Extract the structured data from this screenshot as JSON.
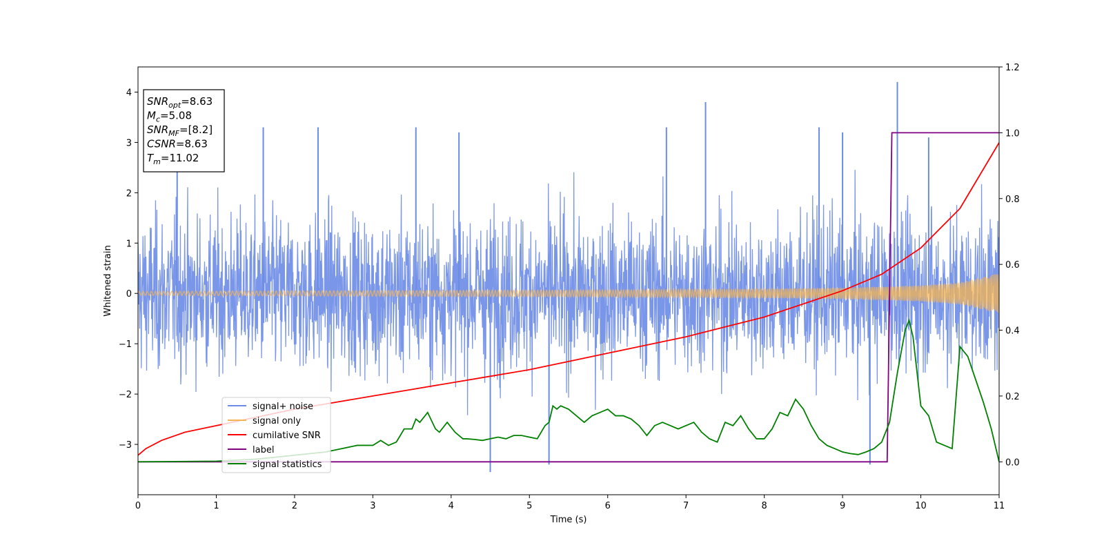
{
  "chart_data": {
    "type": "line",
    "xlabel": "Time (s)",
    "ylabel": "Whitened strain",
    "xlim": [
      0,
      11
    ],
    "ylim": [
      -4,
      4.5
    ],
    "y2lim": [
      -0.1,
      1.2
    ],
    "x_ticks": [
      "0",
      "1",
      "2",
      "3",
      "4",
      "5",
      "6",
      "7",
      "8",
      "9",
      "10",
      "11"
    ],
    "y_ticks": [
      "−3",
      "−2",
      "−1",
      "0",
      "1",
      "2",
      "3",
      "4"
    ],
    "y2_ticks": [
      "0.0",
      "0.2",
      "0.4",
      "0.6",
      "0.8",
      "1.0",
      "1.2"
    ],
    "grid": false,
    "legend_position": "lower-left",
    "info_box": [
      {
        "var": "SNR",
        "sub": "opt",
        "value": "=8.63"
      },
      {
        "var": "M",
        "sub": "c",
        "value": "=5.08"
      },
      {
        "var": "SNR",
        "sub": "MF",
        "value": "=[8.2]"
      },
      {
        "var": "CSNR",
        "sub": "",
        "value": "=8.63"
      },
      {
        "var": "T",
        "sub": "m",
        "value": "=11.02"
      }
    ],
    "series": [
      {
        "name": "signal+ noise",
        "color": "#6b8be6",
        "axis": "left",
        "kind": "noise_band",
        "band_sigma": 0.8,
        "extreme_peaks": [
          [
            0.5,
            3.2
          ],
          [
            1.6,
            3.3
          ],
          [
            2.3,
            3.3
          ],
          [
            3.55,
            3.3
          ],
          [
            4.1,
            3.2
          ],
          [
            4.5,
            -3.55
          ],
          [
            5.25,
            -3.4
          ],
          [
            6.75,
            3.3
          ],
          [
            7.25,
            3.8
          ],
          [
            8.7,
            3.3
          ],
          [
            9.0,
            3.2
          ],
          [
            9.35,
            -3.4
          ],
          [
            9.7,
            4.2
          ],
          [
            10.1,
            3.1
          ]
        ]
      },
      {
        "name": "signal only",
        "color": "#f5b452",
        "axis": "left",
        "kind": "chirp_envelope",
        "amplitude": [
          [
            0,
            0.04
          ],
          [
            2,
            0.05
          ],
          [
            4,
            0.06
          ],
          [
            6,
            0.07
          ],
          [
            8,
            0.09
          ],
          [
            9,
            0.11
          ],
          [
            10,
            0.16
          ],
          [
            10.5,
            0.22
          ],
          [
            11,
            0.4
          ]
        ]
      },
      {
        "name": "cumilative SNR",
        "color": "#ff0000",
        "axis": "right",
        "x": [
          0,
          0.1,
          0.3,
          0.6,
          1,
          1.5,
          2,
          2.5,
          3,
          3.5,
          4,
          4.5,
          5,
          5.5,
          6,
          6.5,
          7,
          7.5,
          8,
          8.5,
          9,
          9.5,
          10,
          10.5,
          11
        ],
        "y": [
          0.02,
          0.04,
          0.065,
          0.09,
          0.11,
          0.135,
          0.16,
          0.18,
          0.2,
          0.22,
          0.24,
          0.26,
          0.28,
          0.305,
          0.33,
          0.355,
          0.38,
          0.41,
          0.44,
          0.48,
          0.52,
          0.57,
          0.65,
          0.77,
          0.97
        ]
      },
      {
        "name": "label",
        "color": "#800080",
        "axis": "right",
        "x": [
          0,
          9.57,
          9.63,
          11
        ],
        "y": [
          0,
          0,
          1,
          1
        ]
      },
      {
        "name": "signal statistics",
        "color": "#008000",
        "axis": "right",
        "x": [
          0,
          1,
          1.5,
          1.8,
          2,
          2.2,
          2.4,
          2.6,
          2.8,
          3.0,
          3.1,
          3.2,
          3.3,
          3.4,
          3.5,
          3.55,
          3.6,
          3.7,
          3.8,
          3.85,
          3.95,
          4.05,
          4.15,
          4.2,
          4.3,
          4.4,
          4.5,
          4.6,
          4.7,
          4.8,
          4.9,
          5.0,
          5.1,
          5.2,
          5.25,
          5.3,
          5.35,
          5.4,
          5.5,
          5.6,
          5.7,
          5.8,
          5.9,
          6.0,
          6.1,
          6.2,
          6.3,
          6.4,
          6.5,
          6.6,
          6.7,
          6.8,
          6.9,
          7.0,
          7.1,
          7.2,
          7.3,
          7.4,
          7.5,
          7.6,
          7.7,
          7.8,
          7.9,
          8.0,
          8.1,
          8.2,
          8.3,
          8.4,
          8.5,
          8.6,
          8.7,
          8.8,
          8.9,
          9.0,
          9.1,
          9.2,
          9.3,
          9.4,
          9.5,
          9.6,
          9.7,
          9.8,
          9.85,
          9.9,
          10.0,
          10.1,
          10.2,
          10.3,
          10.4,
          10.5,
          10.6,
          10.7,
          10.8,
          10.9,
          11
        ],
        "y": [
          0,
          0.002,
          0.008,
          0.015,
          0.02,
          0.025,
          0.03,
          0.04,
          0.05,
          0.05,
          0.065,
          0.05,
          0.06,
          0.1,
          0.1,
          0.13,
          0.12,
          0.15,
          0.1,
          0.09,
          0.12,
          0.09,
          0.07,
          0.07,
          0.068,
          0.065,
          0.07,
          0.075,
          0.07,
          0.08,
          0.08,
          0.075,
          0.07,
          0.11,
          0.12,
          0.17,
          0.16,
          0.17,
          0.16,
          0.14,
          0.12,
          0.14,
          0.15,
          0.16,
          0.14,
          0.14,
          0.13,
          0.11,
          0.08,
          0.11,
          0.12,
          0.11,
          0.1,
          0.11,
          0.12,
          0.09,
          0.07,
          0.06,
          0.12,
          0.11,
          0.14,
          0.1,
          0.07,
          0.07,
          0.1,
          0.15,
          0.14,
          0.19,
          0.16,
          0.11,
          0.07,
          0.05,
          0.04,
          0.03,
          0.025,
          0.022,
          0.03,
          0.04,
          0.06,
          0.12,
          0.27,
          0.4,
          0.43,
          0.38,
          0.17,
          0.14,
          0.06,
          0.05,
          0.04,
          0.35,
          0.32,
          0.25,
          0.18,
          0.1,
          0.0
        ]
      }
    ]
  }
}
